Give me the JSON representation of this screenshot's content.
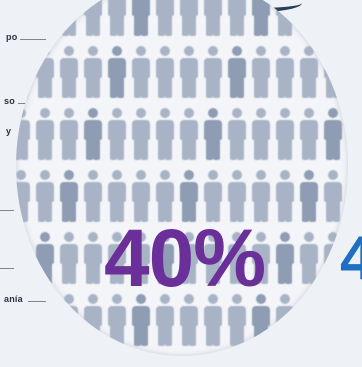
{
  "side_labels": [
    {
      "text": "po"
    },
    {
      "text": "so"
    },
    {
      "text": "y"
    },
    {
      "text": "anía"
    }
  ],
  "overlay": {
    "percent": "40%",
    "edge_char": "4"
  },
  "colors": {
    "percent": "#6b2f9a",
    "edge": "#1f6fc2",
    "figure": "#a8b4c6",
    "figure_dark": "#8e9db3"
  },
  "icon": "person-icon"
}
